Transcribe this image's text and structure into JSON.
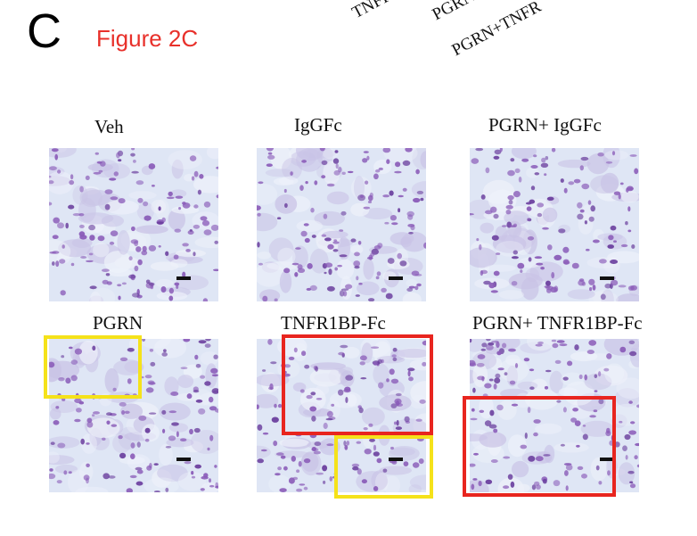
{
  "panel_letter": "C",
  "figure_title": "Figure 2C",
  "top_rotated_labels": [
    "TNFR",
    "PGRN",
    "PGRN+TNFR"
  ],
  "panels": [
    {
      "label": "Veh"
    },
    {
      "label": "IgGFc"
    },
    {
      "label": "PGRN+ IgGFc"
    },
    {
      "label": "PGRN"
    },
    {
      "label": "TNFR1BP-Fc"
    },
    {
      "label": "PGRN+ TNFR1BP-Fc"
    }
  ],
  "colors": {
    "title": "#e8302a",
    "highlight_yellow": "#f5e21a",
    "highlight_red": "#e8251f",
    "tissue_background": "#dfe6f5",
    "nuclei": "#8a5bb8"
  }
}
